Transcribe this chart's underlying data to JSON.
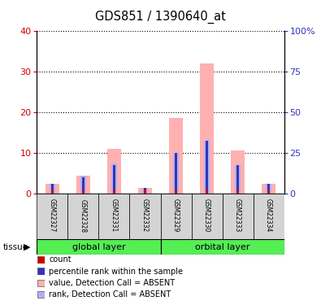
{
  "title": "GDS851 / 1390640_at",
  "samples": [
    "GSM22327",
    "GSM22328",
    "GSM22331",
    "GSM22332",
    "GSM22329",
    "GSM22330",
    "GSM22333",
    "GSM22334"
  ],
  "count_values": [
    1,
    1,
    1,
    1,
    1,
    1,
    1,
    1
  ],
  "rank_values": [
    2.5,
    4.0,
    7.0,
    1.5,
    10.0,
    13.0,
    7.0,
    2.5
  ],
  "absent_value": [
    2.5,
    4.5,
    11.0,
    1.5,
    18.5,
    32.0,
    10.5,
    2.5
  ],
  "absent_rank": [
    2.5,
    4.5,
    7.5,
    1.5,
    10.0,
    13.0,
    7.0,
    2.5
  ],
  "ylim_left": [
    0,
    40
  ],
  "ylim_right": [
    0,
    100
  ],
  "yticks_left": [
    0,
    10,
    20,
    30,
    40
  ],
  "yticks_right": [
    0,
    25,
    50,
    75,
    100
  ],
  "ytick_labels_right": [
    "0",
    "25",
    "50",
    "75",
    "100%"
  ],
  "color_count": "#cc0000",
  "color_rank": "#3333bb",
  "color_absent_value": "#ffb0b0",
  "color_absent_rank": "#b0b0ee",
  "group_color": "#55ee55",
  "tissue_label": "tissue",
  "groups_info": [
    {
      "name": "global layer",
      "start": 0,
      "end": 3
    },
    {
      "name": "orbital layer",
      "start": 4,
      "end": 7
    }
  ],
  "legend_items": [
    {
      "label": "count",
      "color": "#cc0000"
    },
    {
      "label": "percentile rank within the sample",
      "color": "#3333bb"
    },
    {
      "label": "value, Detection Call = ABSENT",
      "color": "#ffb0b0"
    },
    {
      "label": "rank, Detection Call = ABSENT",
      "color": "#b0b0ee"
    }
  ]
}
